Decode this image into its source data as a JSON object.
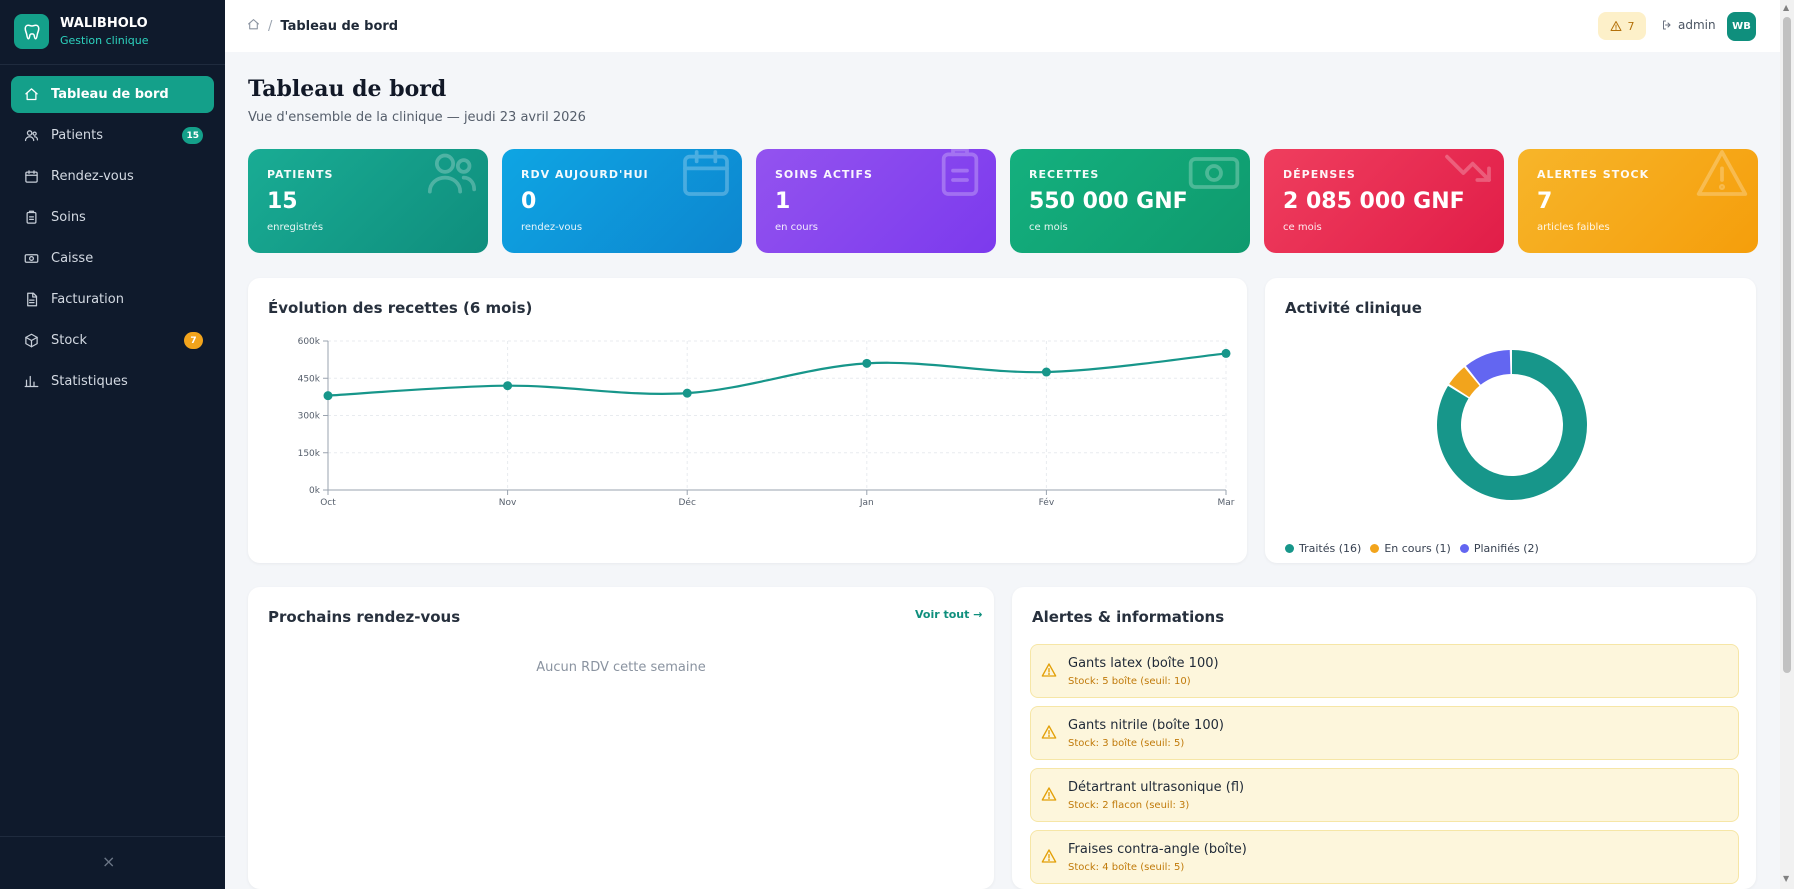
{
  "brand": {
    "name": "WALIBHOLO",
    "subtitle": "Gestion clinique"
  },
  "nav": [
    {
      "label": "Tableau de bord",
      "icon": "home-icon",
      "active": true
    },
    {
      "label": "Patients",
      "icon": "users-icon",
      "badge": "15",
      "badge_color": "#14a08a"
    },
    {
      "label": "Rendez-vous",
      "icon": "calendar-icon"
    },
    {
      "label": "Soins",
      "icon": "clipboard-icon"
    },
    {
      "label": "Caisse",
      "icon": "cash-icon"
    },
    {
      "label": "Facturation",
      "icon": "file-icon"
    },
    {
      "label": "Stock",
      "icon": "box-icon",
      "badge": "7",
      "badge_color": "#f2a41c"
    },
    {
      "label": "Statistiques",
      "icon": "bar-chart-icon"
    }
  ],
  "collapse_glyph": "×",
  "topbar": {
    "breadcrumb_current": "Tableau de bord",
    "breadcrumb_sep": "/",
    "alert_count": "7",
    "user": "admin",
    "avatar": "WB"
  },
  "page": {
    "title": "Tableau de bord",
    "subtitle": "Vue d'ensemble de la clinique — jeudi 23 avril 2026"
  },
  "stats": [
    {
      "label": "PATIENTS",
      "value": "15",
      "sub": "enregistrés",
      "gradient": [
        "#19ac94",
        "#0f8e7d"
      ],
      "icon": "users-icon"
    },
    {
      "label": "RDV AUJOURD'HUI",
      "value": "0",
      "sub": "rendez-vous",
      "gradient": [
        "#0ea5e3",
        "#0d86cf"
      ],
      "icon": "calendar-icon"
    },
    {
      "label": "SOINS ACTIFS",
      "value": "1",
      "sub": "en cours",
      "gradient": [
        "#9353ef",
        "#7c3aed"
      ],
      "icon": "clipboard-icon"
    },
    {
      "label": "RECETTES",
      "value": "550 000 GNF",
      "sub": "ce mois",
      "gradient": [
        "#14b07e",
        "#0f9a6e"
      ],
      "icon": "cash-icon"
    },
    {
      "label": "DÉPENSES",
      "value": "2 085 000 GNF",
      "sub": "ce mois",
      "gradient": [
        "#ef3e5e",
        "#e11d48"
      ],
      "icon": "trend-down-icon"
    },
    {
      "label": "ALERTES STOCK",
      "value": "7",
      "sub": "articles faibles",
      "gradient": [
        "#f7b52a",
        "#f59e0b"
      ],
      "icon": "warning-icon"
    }
  ],
  "revenue_card": {
    "title": "Évolution des recettes (6 mois)"
  },
  "activity_card": {
    "title": "Activité clinique"
  },
  "chart_data": [
    {
      "type": "line",
      "title": "Évolution des recettes (6 mois)",
      "categories": [
        "Oct",
        "Nov",
        "Déc",
        "Jan",
        "Fév",
        "Mar"
      ],
      "series": [
        {
          "values": [
            380000,
            420000,
            390000,
            510000,
            475000,
            550000
          ],
          "color": "#17968a"
        }
      ],
      "ylim": [
        0,
        600000
      ],
      "yticks": [
        {
          "v": 0,
          "label": "0k"
        },
        {
          "v": 150000,
          "label": "150k"
        },
        {
          "v": 300000,
          "label": "300k"
        },
        {
          "v": 450000,
          "label": "450k"
        },
        {
          "v": 600000,
          "label": "600k"
        }
      ],
      "grid": true
    },
    {
      "type": "pie",
      "title": "Activité clinique",
      "slices": [
        {
          "label": "Traités (16)",
          "value": 16,
          "color": "#17968a"
        },
        {
          "label": "En cours (1)",
          "value": 1,
          "color": "#f2a41c"
        },
        {
          "label": "Planifiés (2)",
          "value": 2,
          "color": "#6366f1"
        }
      ]
    }
  ],
  "appointments": {
    "title": "Prochains rendez-vous",
    "link": "Voir tout →",
    "empty": "Aucun RDV cette semaine"
  },
  "alerts": {
    "title": "Alertes & informations",
    "items": [
      {
        "title": "Gants latex (boîte 100)",
        "sub": "Stock: 5 boîte (seuil: 10)"
      },
      {
        "title": "Gants nitrile (boîte 100)",
        "sub": "Stock: 3 boîte (seuil: 5)"
      },
      {
        "title": "Détartrant ultrasonique (fl)",
        "sub": "Stock: 2 flacon (seuil: 3)"
      },
      {
        "title": "Fraises contra-angle (boîte)",
        "sub": "Stock: 4 boîte (seuil: 5)"
      }
    ]
  }
}
